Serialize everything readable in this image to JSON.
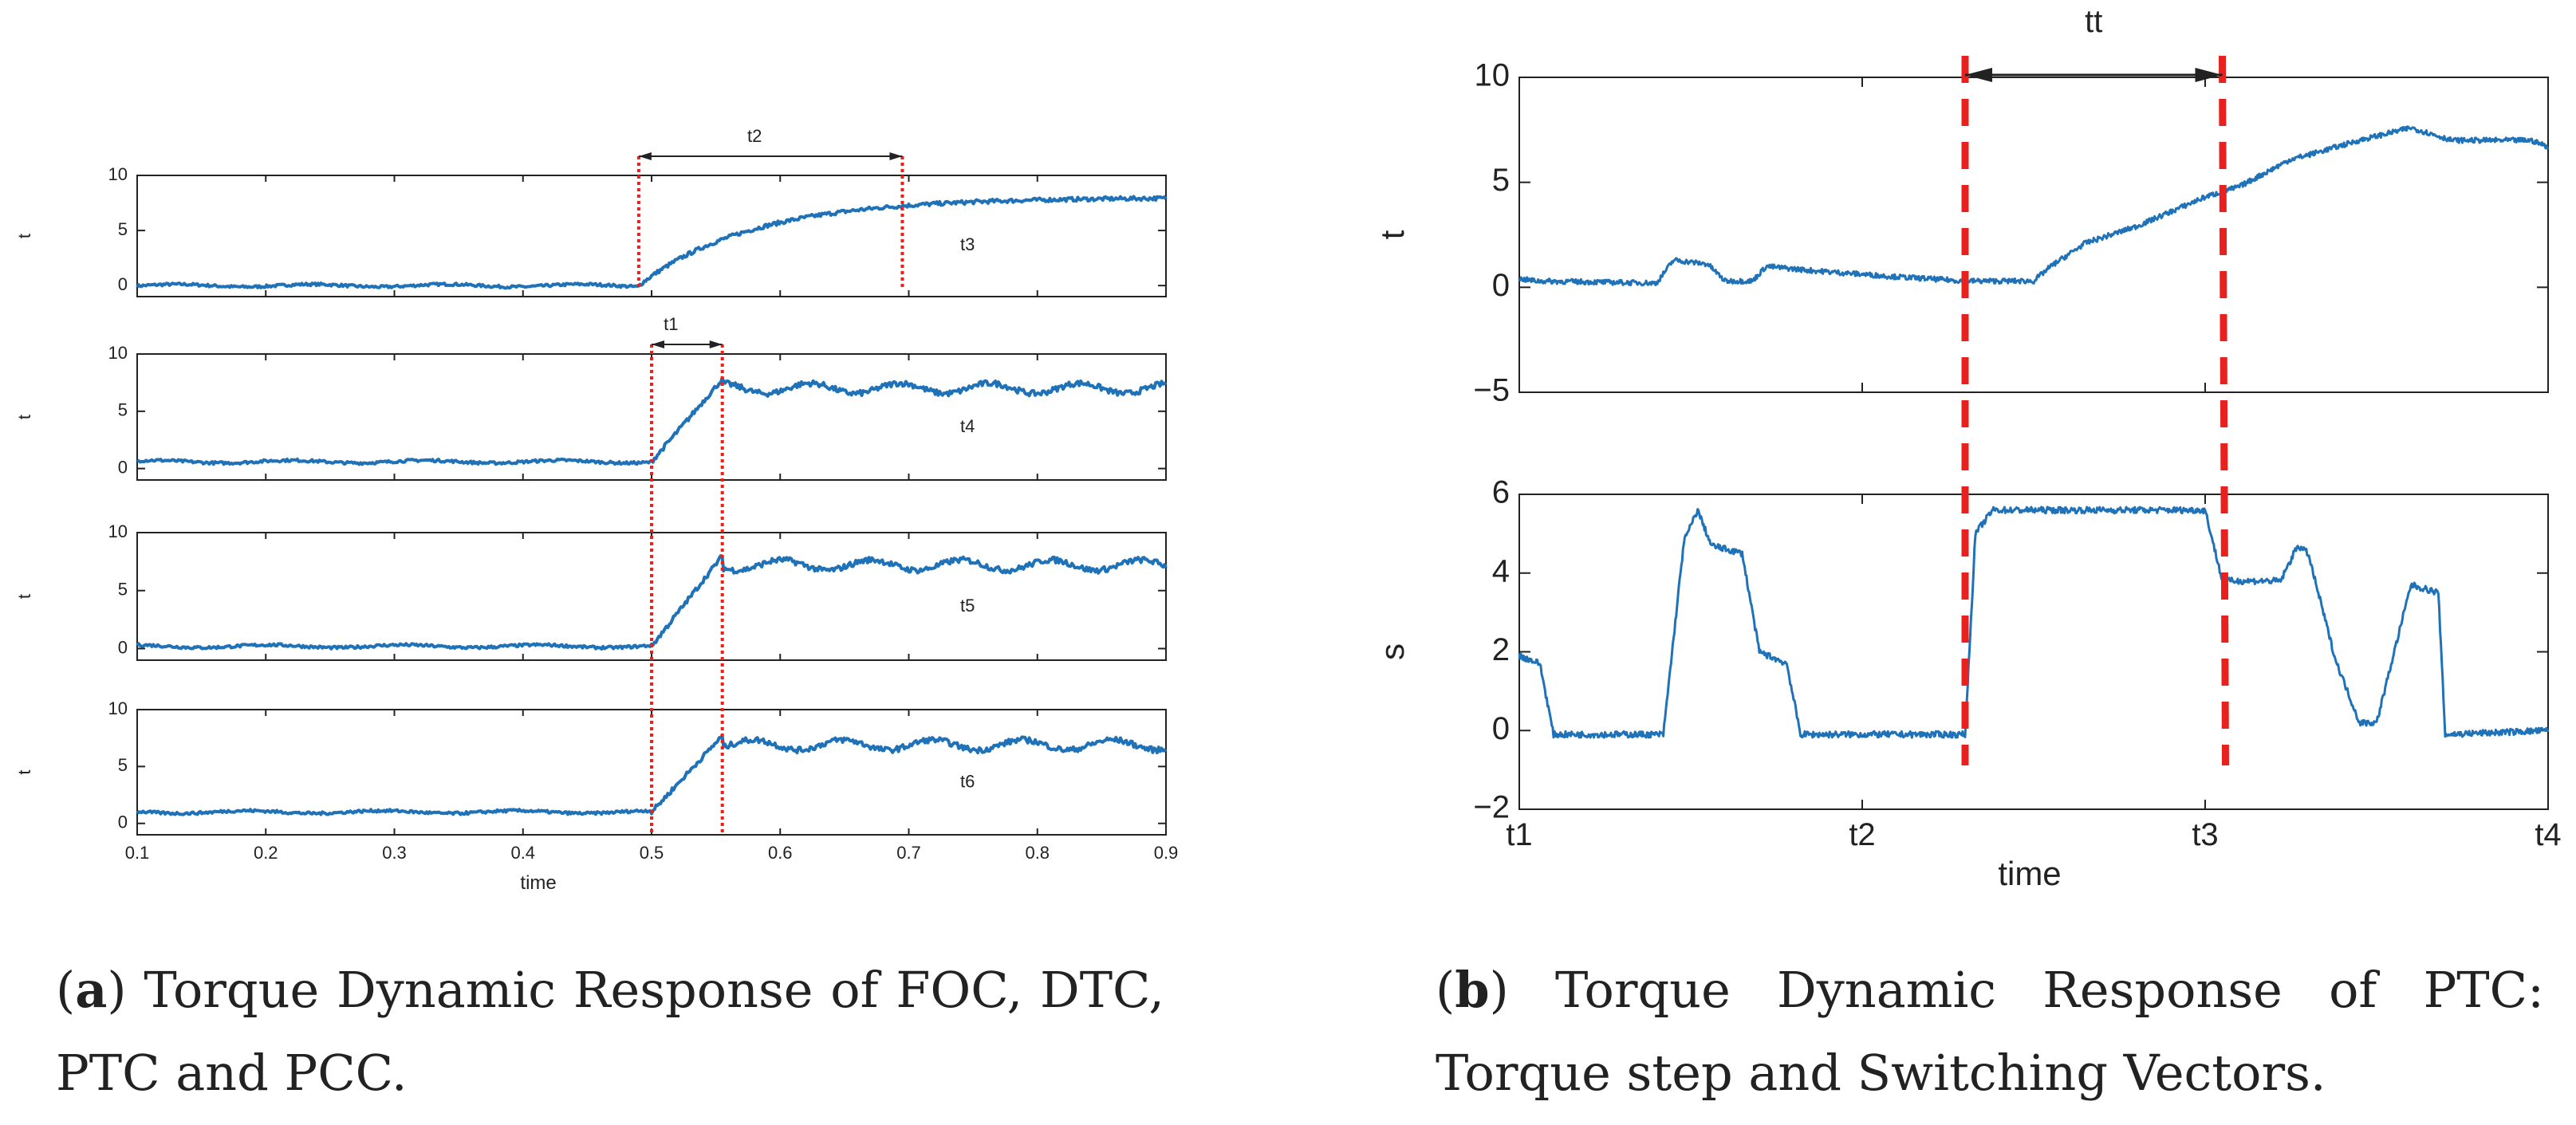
{
  "colors": {
    "signal": "#1f72b8",
    "marker": "#e8201e",
    "axis": "#222222"
  },
  "chart_data": [
    {
      "id": "a",
      "type": "line",
      "xlabel": "time",
      "xlim": [
        0.1,
        0.9
      ],
      "xticks": [
        0.1,
        0.2,
        0.3,
        0.4,
        0.5,
        0.6,
        0.7,
        0.8,
        0.9
      ],
      "xtick_labels": [
        "0.1",
        "0.2",
        "0.3",
        "0.4",
        "0.5",
        "0.6",
        "0.7",
        "0.8",
        "0.9"
      ],
      "subplots": [
        {
          "name": "t3",
          "ylabel": "t",
          "ylim": [
            -1,
            10
          ],
          "yticks": [
            0,
            5,
            10
          ],
          "ytick_labels": [
            "0",
            "5",
            "10"
          ],
          "series_label": "t3",
          "pre": 0.0,
          "step_time": 0.49,
          "rise_end": 0.7,
          "final": 8.0,
          "model": "first-order"
        },
        {
          "name": "t4",
          "ylabel": "t",
          "ylim": [
            -1,
            10
          ],
          "yticks": [
            0,
            5,
            10
          ],
          "ytick_labels": [
            "0",
            "5",
            "10"
          ],
          "series_label": "t4",
          "pre": 0.6,
          "step_time": 0.5,
          "rise_end": 0.555,
          "final": 7.0,
          "model": "ramp"
        },
        {
          "name": "t5",
          "ylabel": "t",
          "ylim": [
            -1,
            10
          ],
          "yticks": [
            0,
            5,
            10
          ],
          "ytick_labels": [
            "0",
            "5",
            "10"
          ],
          "series_label": "t5",
          "pre": 0.2,
          "step_time": 0.5,
          "rise_end": 0.555,
          "final": 7.2,
          "model": "ramp"
        },
        {
          "name": "t6",
          "ylabel": "t",
          "ylim": [
            -1,
            10
          ],
          "yticks": [
            0,
            5,
            10
          ],
          "ytick_labels": [
            "0",
            "5",
            "10"
          ],
          "series_label": "t6",
          "pre": 1.0,
          "step_time": 0.5,
          "rise_end": 0.555,
          "final": 6.9,
          "model": "ramp"
        }
      ],
      "annotations": [
        {
          "label": "t2",
          "from": 0.49,
          "to": 0.695,
          "subplot": "t3"
        },
        {
          "label": "t1",
          "from": 0.5,
          "to": 0.555,
          "subplot": "t4"
        }
      ],
      "marker_lines": [
        0.49,
        0.695,
        0.5,
        0.555
      ]
    },
    {
      "id": "b",
      "type": "line",
      "xlabel": "time",
      "xlim": [
        0,
        3
      ],
      "xticks": [
        0,
        1,
        2,
        3
      ],
      "xtick_labels": [
        "t1",
        "t2",
        "t3",
        "t4"
      ],
      "subplots": [
        {
          "name": "torque",
          "ylabel": "t",
          "ylim": [
            -5,
            10
          ],
          "yticks": [
            -5,
            0,
            5,
            10
          ],
          "ytick_labels": [
            "−5",
            "0",
            "5",
            "10"
          ],
          "points": [
            [
              0,
              0.4
            ],
            [
              0.05,
              0.3
            ],
            [
              0.4,
              0.2
            ],
            [
              0.45,
              1.3
            ],
            [
              0.55,
              1.1
            ],
            [
              0.6,
              0.3
            ],
            [
              0.68,
              0.3
            ],
            [
              0.72,
              1.0
            ],
            [
              0.85,
              0.8
            ],
            [
              1.1,
              0.5
            ],
            [
              1.3,
              0.3
            ],
            [
              1.5,
              0.3
            ],
            [
              1.55,
              1.0
            ],
            [
              1.65,
              2.1
            ],
            [
              1.8,
              2.9
            ],
            [
              2.0,
              4.3
            ],
            [
              2.1,
              4.8
            ],
            [
              2.25,
              6.1
            ],
            [
              2.3,
              6.3
            ],
            [
              2.45,
              7.0
            ],
            [
              2.6,
              7.6
            ],
            [
              2.72,
              7.0
            ],
            [
              2.95,
              7.0
            ],
            [
              3.0,
              6.7
            ]
          ]
        },
        {
          "name": "switching",
          "ylabel": "s",
          "ylim": [
            -2,
            6
          ],
          "yticks": [
            -2,
            0,
            2,
            4,
            6
          ],
          "ytick_labels": [
            "−2",
            "0",
            "2",
            "4",
            "6"
          ],
          "points": [
            [
              0,
              1.9
            ],
            [
              0.06,
              1.7
            ],
            [
              0.1,
              -0.1
            ],
            [
              0.42,
              -0.1
            ],
            [
              0.48,
              4.8
            ],
            [
              0.52,
              5.6
            ],
            [
              0.56,
              4.7
            ],
            [
              0.65,
              4.5
            ],
            [
              0.7,
              2.0
            ],
            [
              0.78,
              1.7
            ],
            [
              0.82,
              -0.1
            ],
            [
              1.3,
              -0.1
            ],
            [
              1.33,
              5.0
            ],
            [
              1.38,
              5.6
            ],
            [
              2.0,
              5.6
            ],
            [
              2.05,
              3.8
            ],
            [
              2.22,
              3.8
            ],
            [
              2.27,
              4.7
            ],
            [
              2.3,
              4.5
            ],
            [
              2.38,
              1.8
            ],
            [
              2.45,
              0.2
            ],
            [
              2.5,
              0.2
            ],
            [
              2.6,
              3.7
            ],
            [
              2.68,
              3.5
            ],
            [
              2.7,
              -0.1
            ],
            [
              3.0,
              0.0
            ]
          ]
        }
      ],
      "annotations": [
        {
          "label": "tt",
          "from": 1.3,
          "to": 2.05
        }
      ],
      "marker_lines": [
        1.3,
        2.05
      ]
    }
  ],
  "captions": {
    "a": {
      "tag": "a",
      "text": " Torque Dynamic Response of FOC, DTC, PTC and PCC."
    },
    "b": {
      "tag": "b",
      "text": " Torque Dynamic Response of PTC: Torque step and Switching Vectors."
    }
  }
}
